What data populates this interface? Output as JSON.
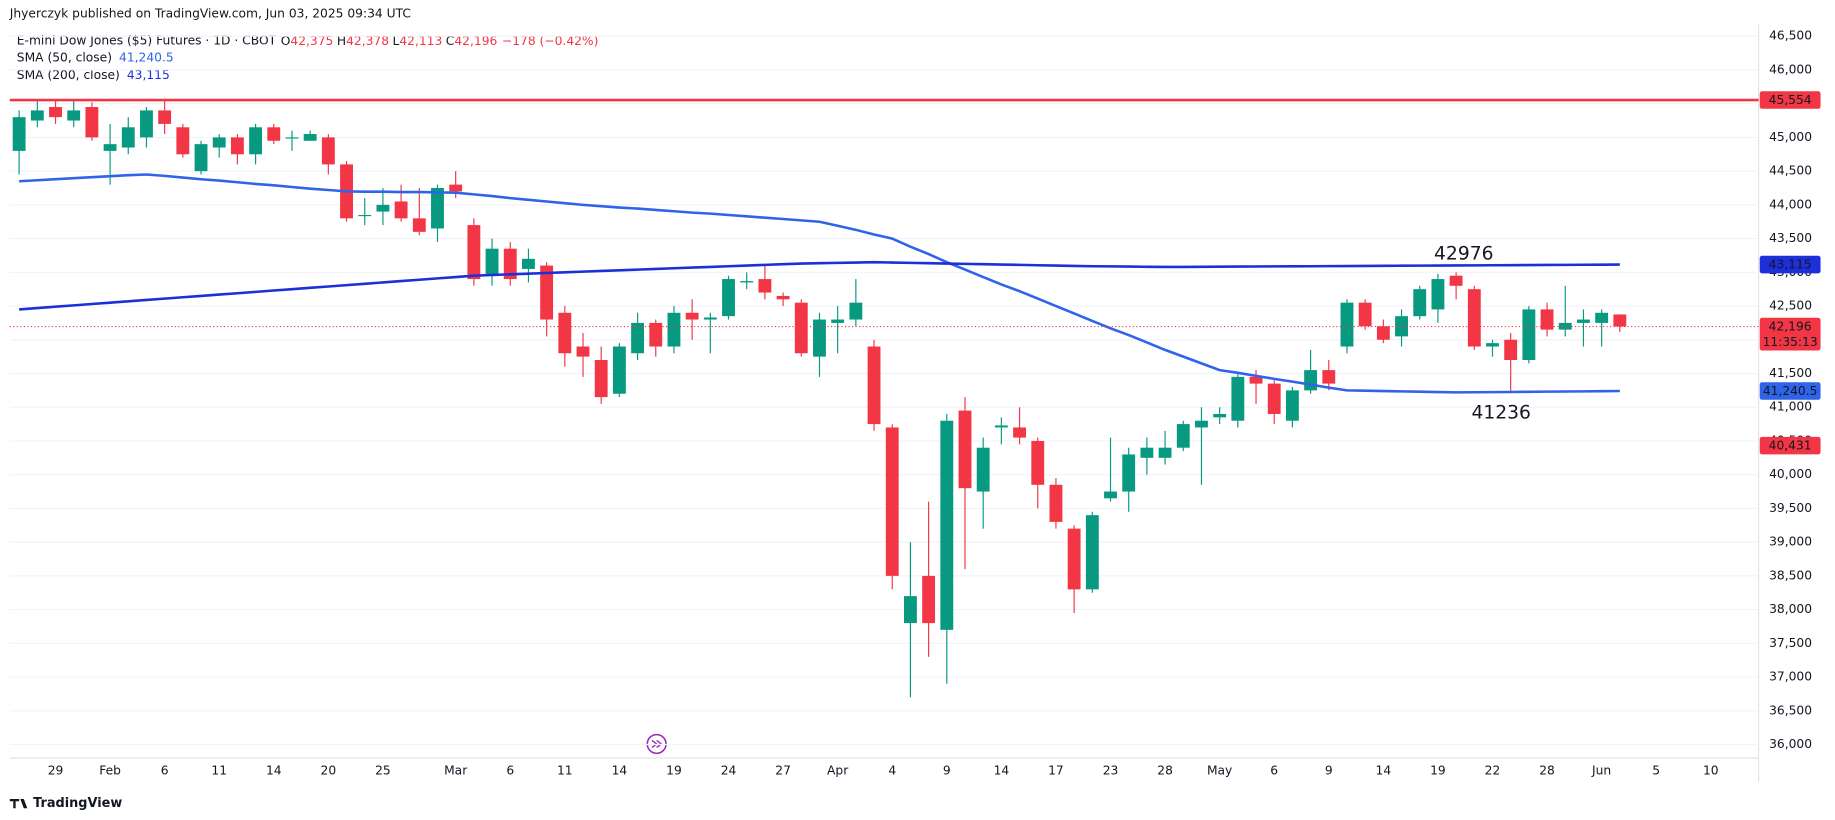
{
  "header": {
    "published": "Jhyerczyk published on TradingView.com, Jun 03, 2025 09:34 UTC"
  },
  "footer": {
    "brand": "TradingView"
  },
  "chart_data": {
    "type": "candlestick",
    "title": "E-mini Dow Jones ($5) Futures · 1D · CBOT",
    "ohlc": [
      {
        "key": "O",
        "value": "42,375"
      },
      {
        "key": "H",
        "value": "42,378"
      },
      {
        "key": "L",
        "value": "42,113"
      },
      {
        "key": "C",
        "value": "42,196"
      }
    ],
    "change": "−178 (−0.42%)",
    "up_color": "#089981",
    "down_color": "#f23645",
    "categories": [
      null,
      null,
      "29",
      null,
      null,
      "Feb",
      null,
      null,
      "6",
      null,
      null,
      "11",
      null,
      null,
      "14",
      null,
      null,
      "20",
      null,
      null,
      "25",
      null,
      null,
      null,
      "Mar",
      null,
      null,
      "6",
      null,
      null,
      "11",
      null,
      null,
      "14",
      null,
      null,
      "19",
      null,
      null,
      "24",
      null,
      null,
      "27",
      null,
      null,
      "Apr",
      null,
      null,
      "4",
      null,
      null,
      "9",
      null,
      null,
      "14",
      null,
      null,
      "17",
      null,
      null,
      "23",
      null,
      null,
      "28",
      null,
      null,
      "May",
      null,
      null,
      "6",
      null,
      null,
      "9",
      null,
      null,
      "14",
      null,
      null,
      "19",
      null,
      null,
      "22",
      null,
      null,
      "28",
      null,
      null,
      "Jun",
      null,
      null,
      "5",
      null,
      null,
      "10",
      null,
      null
    ],
    "open": [
      44800,
      45250,
      45450,
      45250,
      45450,
      44800,
      44850,
      45000,
      45400,
      45150,
      44500,
      44850,
      45000,
      44750,
      45150,
      44990,
      44950,
      45000,
      44600,
      43850,
      43900,
      44050,
      43800,
      43650,
      44300,
      43700,
      42950,
      43350,
      43050,
      43100,
      42400,
      41900,
      41700,
      41200,
      41800,
      42250,
      41900,
      42400,
      42300,
      42350,
      42850,
      42900,
      42650,
      42550,
      41750,
      42250,
      42300,
      41900,
      40700,
      37800,
      38500,
      37700,
      40950,
      39750,
      40700,
      40700,
      40500,
      39850,
      39200,
      38300,
      39650,
      39750,
      40250,
      40250,
      40400,
      40700,
      40850,
      40800,
      41450,
      41350,
      40800,
      41250,
      41550,
      41900,
      42550,
      42200,
      42050,
      42350,
      42450,
      42950,
      42750,
      41900,
      42000,
      41700,
      42450,
      42150,
      42250,
      42250,
      42375,
      null,
      null,
      null,
      null,
      null,
      null,
      null
    ],
    "high": [
      45400,
      45550,
      45550,
      45560,
      45520,
      45200,
      45300,
      45450,
      45550,
      45200,
      44950,
      45050,
      45050,
      45200,
      45200,
      45100,
      45100,
      45050,
      44650,
      44100,
      44250,
      44300,
      44250,
      44300,
      44500,
      43800,
      43500,
      43450,
      43350,
      43150,
      42500,
      42100,
      41900,
      41950,
      42400,
      42300,
      42500,
      42600,
      42400,
      42950,
      43000,
      43100,
      42700,
      42600,
      42400,
      42500,
      42900,
      42000,
      40750,
      39000,
      39600,
      40900,
      41150,
      40550,
      40850,
      41000,
      40550,
      39950,
      39250,
      39450,
      40550,
      40400,
      40550,
      40650,
      40800,
      41000,
      41000,
      41500,
      41550,
      41400,
      41300,
      41850,
      41700,
      42600,
      42600,
      42300,
      42450,
      42800,
      42976,
      43000,
      42800,
      42000,
      42100,
      42500,
      42550,
      42800,
      42450,
      42450,
      42378,
      null,
      null,
      null,
      null,
      null,
      null,
      null
    ],
    "low": [
      44450,
      45150,
      45200,
      45150,
      44950,
      44300,
      44750,
      44850,
      45050,
      44700,
      44450,
      44700,
      44600,
      44600,
      44900,
      44800,
      44950,
      44450,
      43750,
      43700,
      43700,
      43750,
      43550,
      43450,
      44100,
      42800,
      42800,
      42800,
      42850,
      42050,
      41600,
      41450,
      41050,
      41150,
      41700,
      41750,
      41800,
      42000,
      41800,
      42300,
      42750,
      42600,
      42500,
      41750,
      41450,
      41800,
      42200,
      40650,
      38300,
      36700,
      37300,
      36900,
      38600,
      39200,
      40450,
      40450,
      39500,
      39200,
      37950,
      38250,
      39600,
      39450,
      40000,
      40150,
      40350,
      39850,
      40750,
      40700,
      41050,
      40750,
      40700,
      41200,
      41250,
      41800,
      42150,
      41950,
      41900,
      42300,
      42250,
      42600,
      41850,
      41750,
      41236,
      41650,
      42050,
      42050,
      41900,
      41900,
      42113,
      null,
      null,
      null,
      null,
      null,
      null,
      null
    ],
    "close": [
      45300,
      45400,
      45300,
      45400,
      45000,
      44900,
      45150,
      45400,
      45200,
      44750,
      44900,
      45000,
      44750,
      45150,
      44950,
      45000,
      45050,
      44600,
      43800,
      43850,
      44000,
      43800,
      43600,
      44250,
      44200,
      42900,
      43350,
      42900,
      43200,
      42300,
      41800,
      41750,
      41150,
      41900,
      42250,
      41900,
      42400,
      42300,
      42330,
      42900,
      42870,
      42700,
      42600,
      41800,
      42300,
      42300,
      42550,
      40750,
      38500,
      38200,
      37800,
      40800,
      39800,
      40400,
      40730,
      40550,
      39850,
      39300,
      38300,
      39400,
      39750,
      40300,
      40400,
      40400,
      40750,
      40800,
      40900,
      41450,
      41350,
      40900,
      41250,
      41550,
      41350,
      42550,
      42200,
      42000,
      42350,
      42750,
      42900,
      42800,
      41900,
      41950,
      41700,
      42450,
      42150,
      42250,
      42300,
      42400,
      42196,
      null,
      null,
      null,
      null,
      null,
      null,
      null
    ],
    "overlays": [
      {
        "name": "SMA (50, close)",
        "legend_value": "41,240.5",
        "color": "#2f63e8",
        "values": [
          44350,
          44365,
          44380,
          44395,
          44410,
          44425,
          44440,
          44450,
          44430,
          44405,
          44380,
          44360,
          44335,
          44310,
          44290,
          44265,
          44240,
          44220,
          44200,
          44195,
          44195,
          44190,
          44190,
          44185,
          44180,
          44155,
          44130,
          44100,
          44075,
          44050,
          44025,
          44000,
          43980,
          43960,
          43945,
          43925,
          43905,
          43885,
          43870,
          43850,
          43830,
          43810,
          43790,
          43770,
          43750,
          43690,
          43630,
          43560,
          43500,
          43380,
          43270,
          43150,
          43040,
          42930,
          42820,
          42720,
          42610,
          42500,
          42390,
          42280,
          42170,
          42070,
          41960,
          41850,
          41750,
          41650,
          41550,
          41510,
          41465,
          41420,
          41380,
          41335,
          41290,
          41250,
          41245,
          41240,
          41235,
          41230,
          41225,
          41220,
          41222,
          41224,
          41226,
          41229,
          41231,
          41233,
          41235,
          41238,
          41240.5,
          null,
          null,
          null,
          null,
          null,
          null,
          null
        ]
      },
      {
        "name": "SMA (200, close)",
        "legend_value": "43,115",
        "color": "#1c2fd8",
        "values": [
          42450,
          42470,
          42490,
          42510,
          42530,
          42550,
          42570,
          42590,
          42610,
          42630,
          42650,
          42670,
          42690,
          42710,
          42730,
          42750,
          42770,
          42790,
          42810,
          42830,
          42850,
          42870,
          42890,
          42910,
          42930,
          42950,
          42960,
          42970,
          42980,
          42990,
          43000,
          43010,
          43020,
          43030,
          43040,
          43050,
          43060,
          43070,
          43080,
          43090,
          43100,
          43110,
          43120,
          43130,
          43135,
          43140,
          43145,
          43150,
          43145,
          43140,
          43135,
          43130,
          43125,
          43120,
          43115,
          43110,
          43105,
          43100,
          43095,
          43090,
          43088,
          43085,
          43082,
          43080,
          43080,
          43082,
          43083,
          43085,
          43086,
          43088,
          43089,
          43090,
          43092,
          43093,
          43095,
          43096,
          43098,
          43099,
          43100,
          43102,
          43103,
          43105,
          43106,
          43108,
          43109,
          43110,
          43112,
          43113,
          43115,
          null,
          null,
          null,
          null,
          null,
          null,
          null
        ]
      }
    ],
    "levels": [
      {
        "value": 45554,
        "label": "45,554",
        "color": "#f23645",
        "line": "solid"
      },
      {
        "value": 42196,
        "label": "42,196",
        "sub": "11:35:13",
        "color": "#f23645",
        "line": "dotted"
      },
      {
        "value": 40431,
        "label": "40,431",
        "color": "#f23645"
      }
    ],
    "annotations": [
      "42976",
      "41236"
    ],
    "ylim": [
      35800,
      46690
    ],
    "yticks": [
      {
        "value": 36000,
        "label": "36,000"
      },
      {
        "value": 36500,
        "label": "36,500"
      },
      {
        "value": 37000,
        "label": "37,000"
      },
      {
        "value": 37500,
        "label": "37,500"
      },
      {
        "value": 38000,
        "label": "38,000"
      },
      {
        "value": 38500,
        "label": "38,500"
      },
      {
        "value": 39000,
        "label": "39,000"
      },
      {
        "value": 39500,
        "label": "39,500"
      },
      {
        "value": 40000,
        "label": "40,000"
      },
      {
        "value": 40500,
        "label": "40,500"
      },
      {
        "value": 41000,
        "label": "41,000"
      },
      {
        "value": 41500,
        "label": "41,500"
      },
      {
        "value": 42000,
        "label": "42,000"
      },
      {
        "value": 42500,
        "label": "42,500"
      },
      {
        "value": 43000,
        "label": "43,000"
      },
      {
        "value": 43500,
        "label": "43,500"
      },
      {
        "value": 44000,
        "label": "44,000"
      },
      {
        "value": 44500,
        "label": "44,500"
      },
      {
        "value": 45000,
        "label": "45,000"
      },
      {
        "value": 45500,
        "label": "45,500"
      },
      {
        "value": 46000,
        "label": "46,000"
      },
      {
        "value": 46500,
        "label": "46,500"
      }
    ],
    "grid": true
  }
}
